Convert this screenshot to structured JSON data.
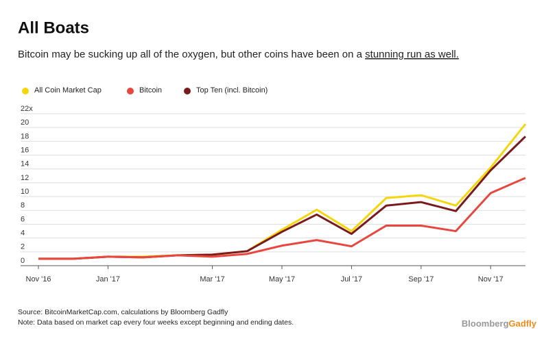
{
  "chart_data": {
    "type": "line",
    "title": "All Boats",
    "subtitle": "Bitcoin may be sucking up all of the oxygen, but other coins have been on a ",
    "subtitle_link": "stunning run as well.",
    "categories": [
      "Nov '16",
      null,
      "Jan '17",
      null,
      null,
      "Mar '17",
      null,
      "May '17",
      null,
      "Jul '17",
      null,
      "Sep '17",
      null,
      "Nov '17",
      null
    ],
    "series": [
      {
        "name": "All Coin Market Cap",
        "color": "#f4d60e",
        "values": [
          1,
          1,
          1.3,
          1.3,
          1.5,
          1.6,
          2.1,
          5.2,
          8.1,
          5.0,
          9.8,
          10.2,
          8.7,
          14.2,
          20.5
        ]
      },
      {
        "name": "Bitcoin",
        "color": "#e8473f",
        "values": [
          1,
          1,
          1.3,
          1.2,
          1.5,
          1.3,
          1.7,
          2.9,
          3.7,
          2.8,
          5.8,
          5.8,
          5.0,
          10.5,
          12.7
        ]
      },
      {
        "name": "Top Ten (incl. Bitcoin)",
        "color": "#7a1a1c",
        "values": [
          1,
          1,
          1.3,
          1.2,
          1.5,
          1.6,
          2.1,
          4.9,
          7.4,
          4.6,
          8.7,
          9.2,
          7.9,
          13.8,
          18.7
        ]
      }
    ],
    "ylim": [
      0,
      22
    ],
    "yticks": [
      0,
      2,
      4,
      6,
      8,
      10,
      12,
      14,
      16,
      18,
      20,
      {
        "value": 22,
        "label": "22x"
      }
    ],
    "grid": true,
    "legend": "top-left",
    "source": "Source: BitcoinMarketCap.com, calculations by Bloomberg Gadfly",
    "note": "Note: Data based on market cap every four weeks except beginning and ending dates.",
    "brand": [
      "Bloomberg",
      "Gadfly"
    ]
  }
}
